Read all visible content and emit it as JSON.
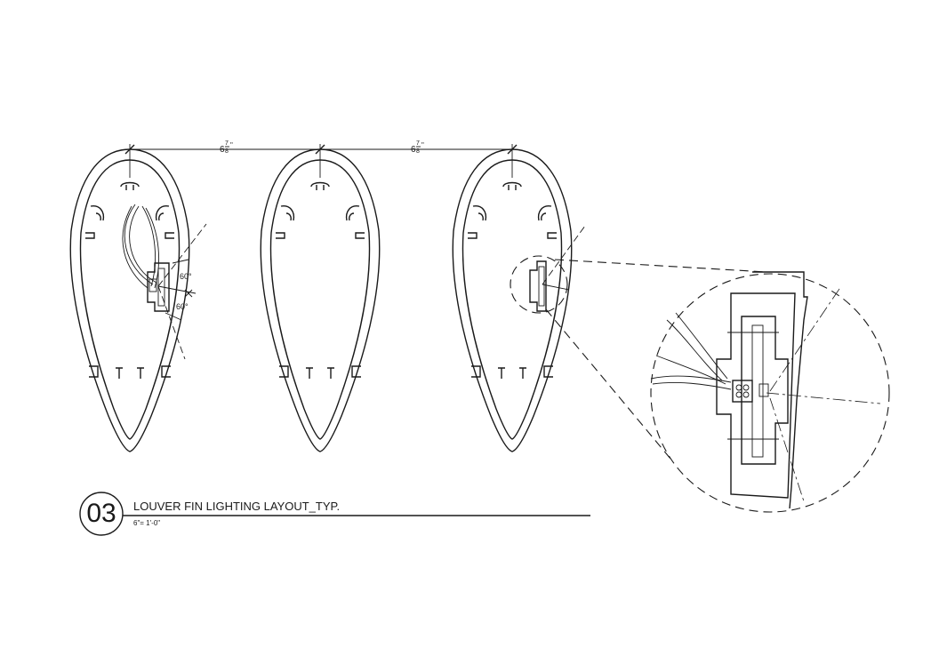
{
  "drawing": {
    "number": "03",
    "title": "LOUVER FIN LIGHTING LAYOUT_TYP.",
    "scale": "6\"= 1'-0\""
  },
  "dimensions": {
    "spacing_1": "6",
    "spacing_1_num": "7",
    "spacing_1_den": "8",
    "spacing_1_unit": "\"",
    "spacing_2": "6",
    "spacing_2_num": "7",
    "spacing_2_den": "8",
    "spacing_2_unit": "\"",
    "angle_1": "60°",
    "angle_2": "60°"
  },
  "colors": {
    "line": "#1a1a1a",
    "background": "#ffffff"
  }
}
